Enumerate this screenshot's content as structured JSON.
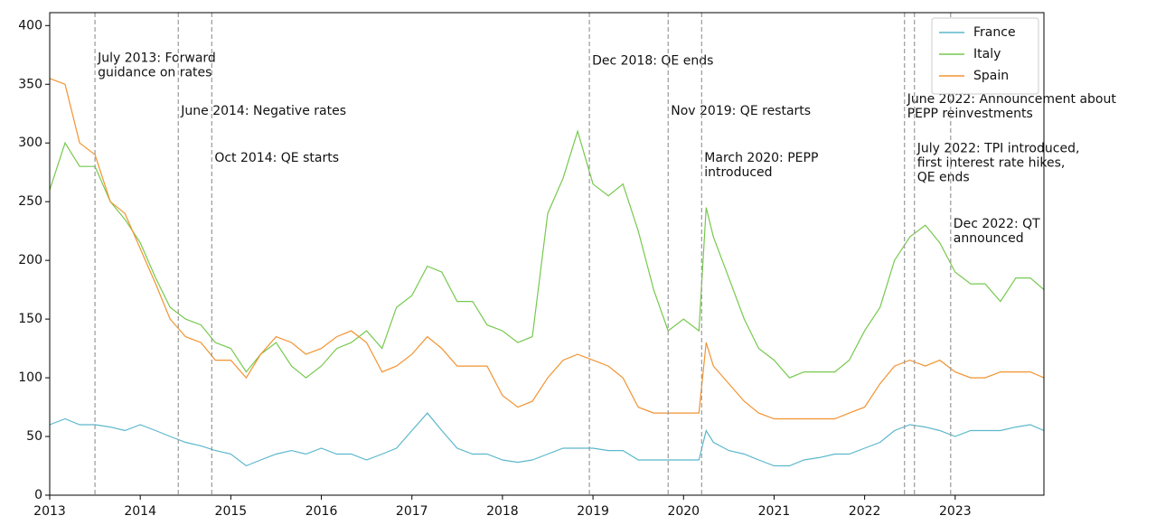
{
  "chart_data": {
    "type": "line",
    "x": [
      2013.0,
      2013.17,
      2013.33,
      2013.5,
      2013.67,
      2013.83,
      2014.0,
      2014.17,
      2014.33,
      2014.5,
      2014.67,
      2014.83,
      2015.0,
      2015.17,
      2015.33,
      2015.5,
      2015.67,
      2015.83,
      2016.0,
      2016.17,
      2016.33,
      2016.5,
      2016.67,
      2016.83,
      2017.0,
      2017.17,
      2017.33,
      2017.5,
      2017.67,
      2017.83,
      2018.0,
      2018.17,
      2018.33,
      2018.5,
      2018.67,
      2018.83,
      2019.0,
      2019.17,
      2019.33,
      2019.5,
      2019.67,
      2019.83,
      2020.0,
      2020.17,
      2020.25,
      2020.33,
      2020.5,
      2020.67,
      2020.83,
      2021.0,
      2021.17,
      2021.33,
      2021.5,
      2021.67,
      2021.83,
      2022.0,
      2022.17,
      2022.33,
      2022.5,
      2022.67,
      2022.83,
      2023.0,
      2023.17,
      2023.33,
      2023.5,
      2023.67,
      2023.83,
      2023.98
    ],
    "series": [
      {
        "name": "France",
        "color": "#5bb8cc",
        "values": [
          60,
          65,
          60,
          60,
          58,
          55,
          60,
          55,
          50,
          45,
          42,
          38,
          35,
          25,
          30,
          35,
          38,
          35,
          40,
          35,
          35,
          30,
          35,
          40,
          55,
          70,
          55,
          40,
          35,
          35,
          30,
          28,
          30,
          35,
          40,
          40,
          40,
          38,
          38,
          30,
          30,
          30,
          30,
          30,
          55,
          45,
          38,
          35,
          30,
          25,
          25,
          30,
          32,
          35,
          35,
          40,
          45,
          55,
          60,
          58,
          55,
          50,
          55,
          55,
          55,
          58,
          60,
          55
        ]
      },
      {
        "name": "Italy",
        "color": "#77c94e",
        "values": [
          260,
          300,
          280,
          280,
          250,
          235,
          215,
          185,
          160,
          150,
          145,
          130,
          125,
          105,
          120,
          130,
          110,
          100,
          110,
          125,
          130,
          140,
          125,
          160,
          170,
          195,
          190,
          165,
          165,
          145,
          140,
          130,
          135,
          240,
          270,
          310,
          265,
          255,
          265,
          225,
          175,
          140,
          150,
          140,
          245,
          220,
          185,
          150,
          125,
          115,
          100,
          105,
          105,
          105,
          115,
          140,
          160,
          200,
          220,
          230,
          215,
          190,
          180,
          180,
          165,
          185,
          185,
          175
        ]
      },
      {
        "name": "Spain",
        "color": "#f29330",
        "values": [
          355,
          350,
          300,
          290,
          250,
          240,
          210,
          180,
          150,
          135,
          130,
          115,
          115,
          100,
          120,
          135,
          130,
          120,
          125,
          135,
          140,
          130,
          105,
          110,
          120,
          135,
          125,
          110,
          110,
          110,
          85,
          75,
          80,
          100,
          115,
          120,
          115,
          110,
          100,
          75,
          70,
          70,
          70,
          70,
          130,
          110,
          95,
          80,
          70,
          65,
          65,
          65,
          65,
          65,
          70,
          75,
          95,
          110,
          115,
          110,
          115,
          105,
          100,
          100,
          105,
          105,
          105,
          100
        ]
      }
    ],
    "xlim": [
      2013,
      2023.98
    ],
    "xticks": [
      2013,
      2014,
      2015,
      2016,
      2017,
      2018,
      2019,
      2020,
      2021,
      2022,
      2023
    ],
    "ylim": [
      0,
      411
    ],
    "yticks": [
      0,
      50,
      100,
      150,
      200,
      250,
      300,
      350,
      400
    ],
    "legend": "upper right",
    "annotations": [
      {
        "x": 2013.5,
        "y": 372,
        "text": [
          "July 2013: Forward",
          "guidance on rates"
        ]
      },
      {
        "x": 2014.42,
        "y": 327,
        "text": [
          "June 2014: Negative rates"
        ]
      },
      {
        "x": 2014.79,
        "y": 287,
        "text": [
          "Oct 2014: QE starts"
        ]
      },
      {
        "x": 2018.96,
        "y": 370,
        "text": [
          "Dec 2018: QE ends"
        ]
      },
      {
        "x": 2019.83,
        "y": 327,
        "text": [
          "Nov 2019: QE restarts"
        ]
      },
      {
        "x": 2020.2,
        "y": 287,
        "text": [
          "March 2020: PEPP",
          "introduced"
        ]
      },
      {
        "x": 2022.44,
        "y": 337,
        "text": [
          "June 2022: Announcement about",
          "PEPP reinvestments"
        ]
      },
      {
        "x": 2022.55,
        "y": 295,
        "text": [
          "July 2022: TPI introduced,",
          "first interest rate hikes,",
          "QE ends"
        ]
      },
      {
        "x": 2022.95,
        "y": 231,
        "text": [
          "Dec 2022: QT",
          "announced"
        ]
      }
    ]
  }
}
